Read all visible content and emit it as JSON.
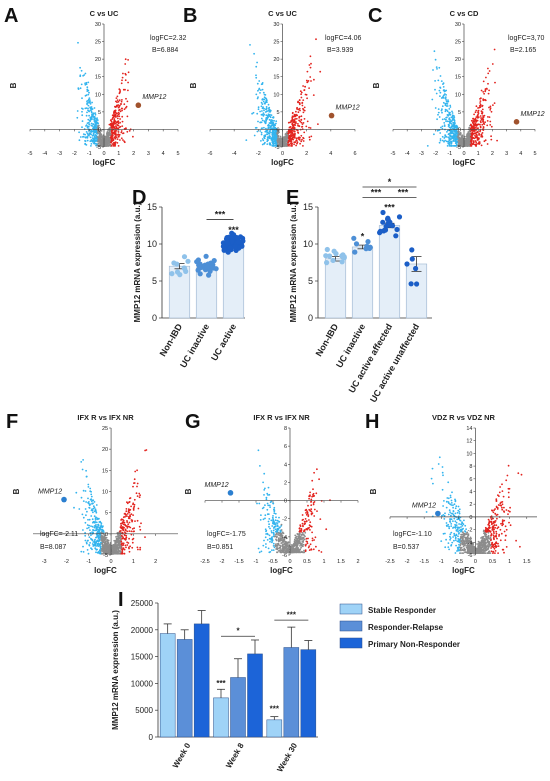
{
  "colors": {
    "blue": "#33b4ee",
    "red": "#e3241f",
    "grey": "#8c8c8c",
    "bar_light": "#b7d9f3",
    "dot_light": "#8fc2ea",
    "dot_mid": "#4d8fd6",
    "dot_dark": "#1b5ec7",
    "stable": "#9fd3f7",
    "relapse": "#5b8fd8",
    "primary": "#1c64d8"
  },
  "chart_data": [
    {
      "panel": "A",
      "type": "scatter",
      "title": "C vs UC",
      "xlabel": "logFC",
      "ylabel": "B",
      "xlim": [
        -5,
        5
      ],
      "ylim": [
        -5,
        30
      ],
      "xticks": [
        "-5",
        "-4",
        "-3",
        "-2",
        "-1",
        "0",
        "1",
        "2",
        "3",
        "4",
        "5"
      ],
      "yticks": [
        "-5",
        "0",
        "5",
        "10",
        "15",
        "20",
        "25",
        "30"
      ],
      "annotation": {
        "gene": "MMP12",
        "logFC": 2.32,
        "B": 6.884,
        "line1": "logFC=2.32",
        "line2": "B=6.884"
      }
    },
    {
      "panel": "B",
      "type": "scatter",
      "title": "C vs UC",
      "xlabel": "logFC",
      "ylabel": "B",
      "xlim": [
        -6,
        6
      ],
      "ylim": [
        -5,
        30
      ],
      "xticks": [
        "-6",
        "-4",
        "-2",
        "0",
        "2",
        "4",
        "6"
      ],
      "yticks": [
        "-5",
        "0",
        "5",
        "10",
        "15",
        "20",
        "25",
        "30"
      ],
      "annotation": {
        "gene": "MMP12",
        "logFC": 4.06,
        "B": 3.939,
        "line1": "logFC=4.06",
        "line2": "B=3.939"
      }
    },
    {
      "panel": "C",
      "type": "scatter",
      "title": "C vs CD",
      "xlabel": "logFC",
      "ylabel": "B",
      "xlim": [
        -5,
        5
      ],
      "ylim": [
        -5,
        30
      ],
      "xticks": [
        "-5",
        "-4",
        "-3",
        "-2",
        "-1",
        "0",
        "1",
        "2",
        "3",
        "4",
        "5"
      ],
      "yticks": [
        "-5",
        "0",
        "5",
        "10",
        "15",
        "20",
        "25",
        "30"
      ],
      "annotation": {
        "gene": "MMP12",
        "logFC": 3.7,
        "B": 2.165,
        "line1": "logFC=3,70",
        "line2": "B=2.165"
      }
    },
    {
      "panel": "D",
      "type": "bar",
      "ylabel": "MMP12 mRNA expression (a.u.)",
      "ylim": [
        0,
        15
      ],
      "yticks": [
        "0",
        "5",
        "10",
        "15"
      ],
      "categories": [
        "Non-IBD",
        "UC inactive",
        "UC active"
      ],
      "values": [
        7.0,
        6.8,
        10.2
      ],
      "errors": [
        0.35,
        0.2,
        0.15
      ],
      "significance": [
        {
          "label": "***",
          "from": 1,
          "to": 2
        },
        {
          "label": "***",
          "over": 2
        }
      ]
    },
    {
      "panel": "E",
      "type": "bar",
      "ylabel": "MMP12 mRNA expression (a.u.)",
      "ylim": [
        0,
        15
      ],
      "yticks": [
        "0",
        "5",
        "10",
        "15"
      ],
      "categories": [
        "Non-IBD",
        "UC inactive",
        "UC active affected",
        "UC active unaffected"
      ],
      "values": [
        8.0,
        9.6,
        12.5,
        7.3
      ],
      "errors": [
        0.3,
        0.25,
        0.3,
        1.0
      ],
      "significance": [
        {
          "label": "*",
          "from": 1,
          "to": 3
        },
        {
          "label": "***",
          "from": 1,
          "to": 2
        },
        {
          "label": "***",
          "from": 2,
          "to": 3
        },
        {
          "label": "***",
          "over": 2
        },
        {
          "label": "*",
          "over": 1
        }
      ]
    },
    {
      "panel": "F",
      "type": "scatter",
      "title": "IFX R vs IFX NR",
      "xlabel": "logFC",
      "ylabel": "B",
      "xlim": [
        -3.5,
        3
      ],
      "ylim": [
        -5,
        25
      ],
      "xticks": [
        "-3",
        "-2",
        "-1",
        "0",
        "1",
        "2"
      ],
      "yticks": [
        "-5",
        "0",
        "5",
        "10",
        "15",
        "20",
        "25"
      ],
      "annotation": {
        "gene": "MMP12",
        "logFC": -2.11,
        "B": 8.087,
        "line1": "logFC=-2.11",
        "line2": "B=8.087"
      }
    },
    {
      "panel": "G",
      "type": "scatter",
      "title": "IFX R vs IFX NR",
      "xlabel": "logFC",
      "ylabel": "B",
      "xlim": [
        -2.5,
        2
      ],
      "ylim": [
        -6,
        8
      ],
      "xticks": [
        "-2.5",
        "-2",
        "-1.5",
        "-1",
        "-0.5",
        "0",
        "0.5",
        "1",
        "1.5",
        "2"
      ],
      "yticks": [
        "-6",
        "-4",
        "-2",
        "0",
        "2",
        "4",
        "6",
        "8"
      ],
      "annotation": {
        "gene": "MMP12",
        "logFC": -1.75,
        "B": 0.851,
        "line1": "logFC=-1.75",
        "line2": "B=0.851"
      }
    },
    {
      "panel": "H",
      "type": "scatter",
      "title": "VDZ R vs VDZ NR",
      "xlabel": "logFC",
      "ylabel": "B",
      "xlim": [
        -2.5,
        1.8
      ],
      "ylim": [
        -6,
        14
      ],
      "xticks": [
        "-2.5",
        "-2",
        "-1.5",
        "-1",
        "-0.5",
        "0",
        "0.5",
        "1",
        "1.5"
      ],
      "yticks": [
        "-6",
        "-4",
        "-2",
        "0",
        "2",
        "4",
        "6",
        "8",
        "10",
        "12",
        "14"
      ],
      "annotation": {
        "gene": "MMP12",
        "logFC": -1.1,
        "B": 0.537,
        "line1": "logFC=-1.10",
        "line2": "B=0.537"
      }
    },
    {
      "panel": "I",
      "type": "bar",
      "ylabel": "MMP12 mRNA expression (a.u.)",
      "ylim": [
        0,
        25000
      ],
      "yticks": [
        "0",
        "5000",
        "10000",
        "15000",
        "20000",
        "25000"
      ],
      "categories": [
        "Week 0",
        "Week 8",
        "Week 30"
      ],
      "series": [
        {
          "name": "Stable Responder",
          "values": [
            19300,
            7300,
            3200
          ],
          "errors": [
            1800,
            1600,
            600
          ]
        },
        {
          "name": "Responder-Relapse",
          "values": [
            18200,
            11100,
            16700
          ],
          "errors": [
            1800,
            3500,
            3800
          ]
        },
        {
          "name": "Primary Non-Responder",
          "values": [
            21100,
            15500,
            16300
          ],
          "errors": [
            2500,
            2600,
            1700
          ]
        }
      ],
      "significance": [
        {
          "label": "***",
          "week": 1
        },
        {
          "label": "*",
          "week": 1
        },
        {
          "label": "***",
          "week": 2
        },
        {
          "label": "***",
          "week": 2
        }
      ]
    }
  ]
}
